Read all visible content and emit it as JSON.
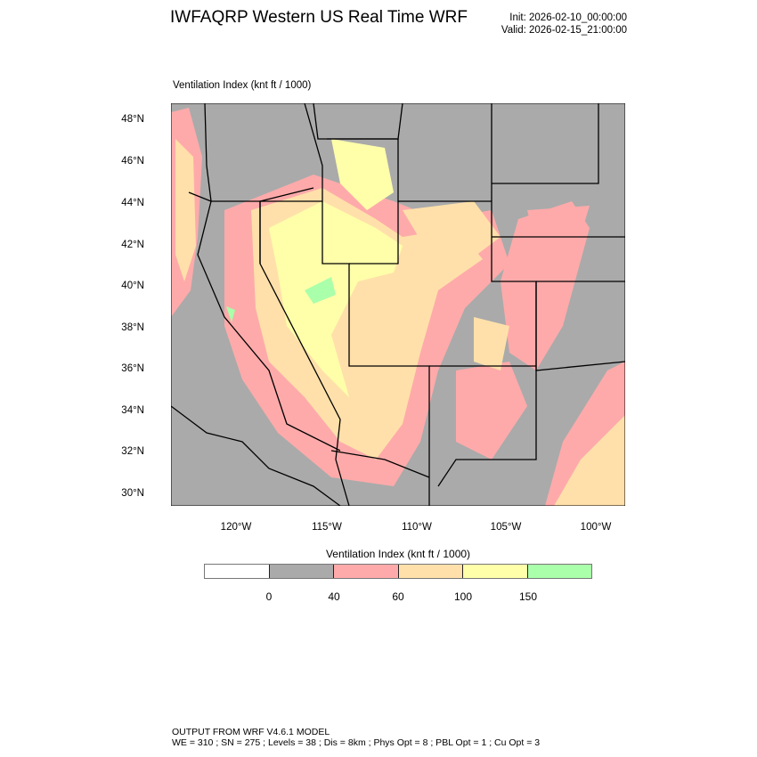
{
  "header": {
    "title": "IWFAQRP Western US Real Time WRF",
    "init": "Init: 2026-02-10_00:00:00",
    "valid": "Valid: 2026-02-15_21:00:00",
    "field_label": "Ventilation Index   (knt ft / 1000)"
  },
  "map": {
    "lat_labels": [
      "48°N",
      "46°N",
      "44°N",
      "42°N",
      "40°N",
      "38°N",
      "36°N",
      "34°N",
      "32°N",
      "30°N"
    ],
    "lon_labels": [
      "120°W",
      "115°W",
      "110°W",
      "105°W",
      "100°W"
    ]
  },
  "colorbar": {
    "title": "Ventilation Index  (knt ft / 1000)",
    "colors": [
      "#ffffff",
      "#aaaaaa",
      "#ffaaaa",
      "#ffe0aa",
      "#ffffaa",
      "#aaffaa"
    ],
    "tick_labels": [
      "0",
      "40",
      "60",
      "100",
      "150"
    ]
  },
  "footer": {
    "line1": "OUTPUT FROM WRF V4.6.1 MODEL",
    "line2": "WE = 310 ; SN = 275 ; Levels = 38 ; Dis = 8km ; Phys Opt = 8 ; PBL Opt = 1 ; Cu Opt = 3"
  }
}
